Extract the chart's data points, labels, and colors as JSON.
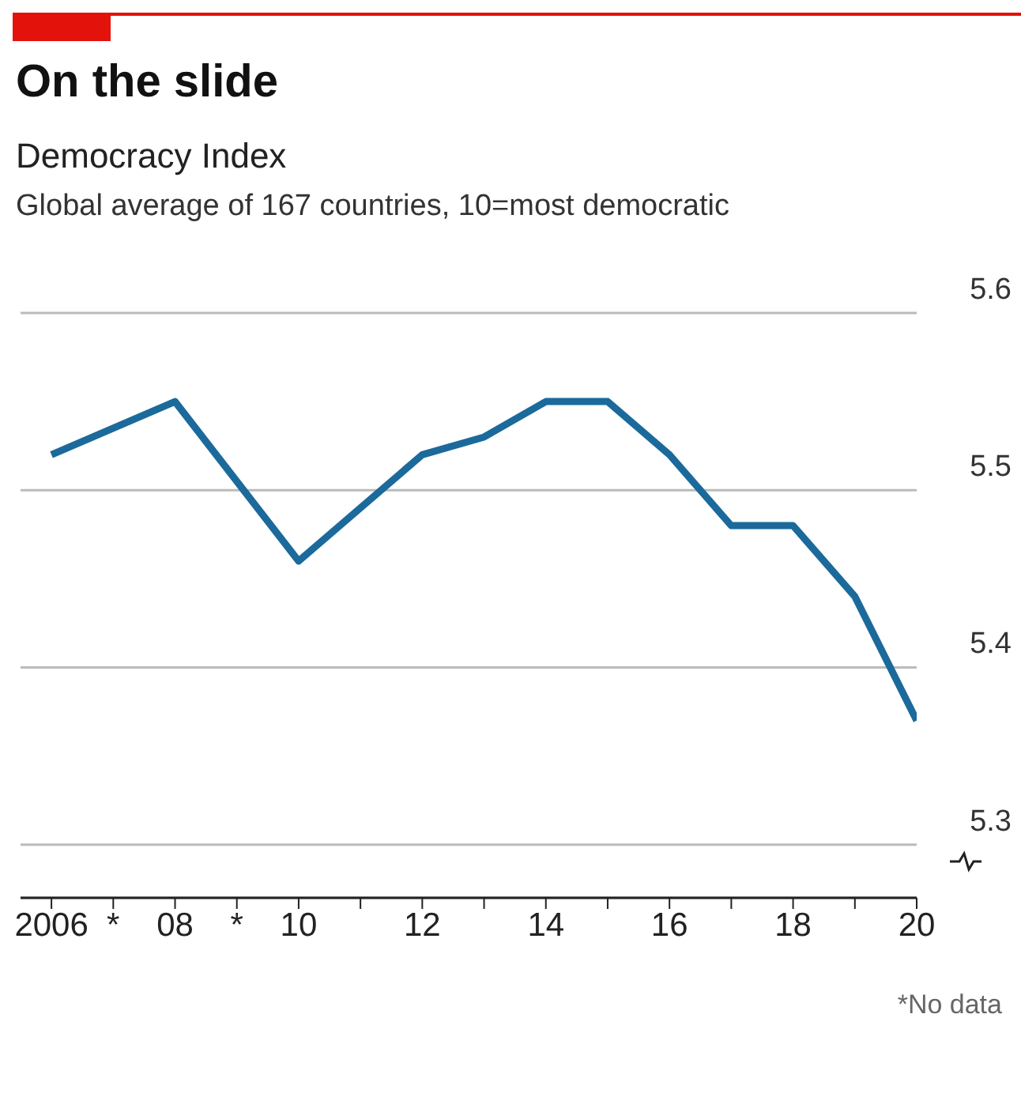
{
  "chart_data": {
    "type": "line",
    "title": "On the slide",
    "subtitle": "Democracy Index",
    "ylabel": "Global average of 167 countries, 10=most democratic",
    "x": [
      2006,
      2008,
      2010,
      2011,
      2012,
      2013,
      2014,
      2015,
      2016,
      2017,
      2018,
      2019,
      2020
    ],
    "series": [
      {
        "color": "#1b6a9b",
        "values": [
          5.52,
          5.55,
          5.46,
          5.49,
          5.52,
          5.53,
          5.55,
          5.55,
          5.52,
          5.48,
          5.48,
          5.44,
          5.37
        ]
      }
    ],
    "xlim": [
      2005.5,
      2020
    ],
    "xticks": [
      {
        "value": 2006,
        "label": "2006"
      },
      {
        "value": 2007,
        "label": "*"
      },
      {
        "value": 2008,
        "label": "08"
      },
      {
        "value": 2009,
        "label": "*"
      },
      {
        "value": 2010,
        "label": "10"
      },
      {
        "value": 2011,
        "label": null
      },
      {
        "value": 2012,
        "label": "12"
      },
      {
        "value": 2013,
        "label": null
      },
      {
        "value": 2014,
        "label": "14"
      },
      {
        "value": 2015,
        "label": null
      },
      {
        "value": 2016,
        "label": "16"
      },
      {
        "value": 2017,
        "label": null
      },
      {
        "value": 2018,
        "label": "18"
      },
      {
        "value": 2019,
        "label": null
      },
      {
        "value": 2020,
        "label": "20"
      }
    ],
    "ylim": [
      5.27,
      5.6
    ],
    "yticks": [
      5.3,
      5.4,
      5.5,
      5.6
    ],
    "grid": "y",
    "legend": false,
    "marker": "none",
    "line_style": "solid",
    "annotations": [
      "*No data"
    ]
  }
}
